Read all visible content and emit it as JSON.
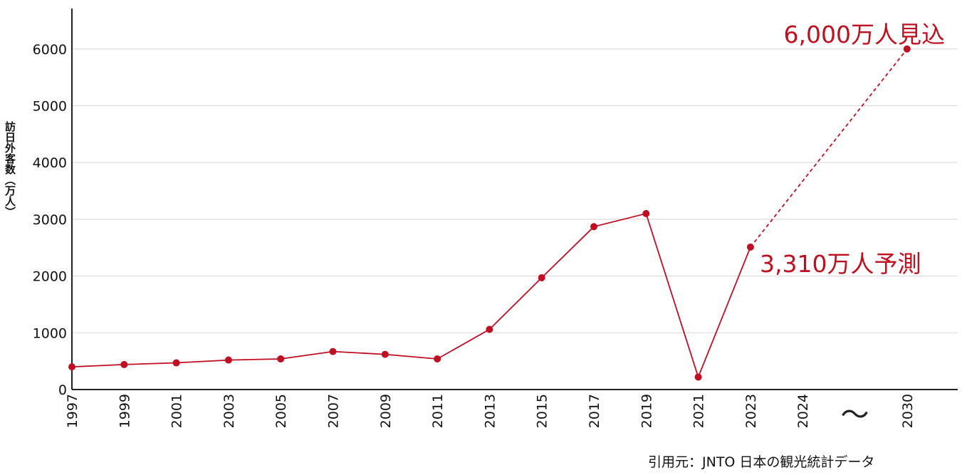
{
  "chart_data": {
    "type": "line",
    "ylabel": "訪日外客数（万人）",
    "ylim": [
      0,
      6500
    ],
    "yticks": [
      0,
      1000,
      2000,
      3000,
      4000,
      5000,
      6000
    ],
    "categories": [
      "1997",
      "1999",
      "2001",
      "2003",
      "2005",
      "2007",
      "2009",
      "2011",
      "2013",
      "2015",
      "2017",
      "2019",
      "2021",
      "2023",
      "2024",
      "〜",
      "2030"
    ],
    "series": [
      {
        "points": [
          {
            "x": "1997",
            "y": 400
          },
          {
            "x": "1999",
            "y": 440
          },
          {
            "x": "2001",
            "y": 470
          },
          {
            "x": "2003",
            "y": 520
          },
          {
            "x": "2005",
            "y": 540
          },
          {
            "x": "2007",
            "y": 670
          },
          {
            "x": "2009",
            "y": 620
          },
          {
            "x": "2011",
            "y": 540
          },
          {
            "x": "2013",
            "y": 1060
          },
          {
            "x": "2015",
            "y": 1970
          },
          {
            "x": "2017",
            "y": 2870
          },
          {
            "x": "2019",
            "y": 3100
          },
          {
            "x": "2021",
            "y": 220
          },
          {
            "x": "2023",
            "y": 2510
          }
        ]
      },
      {
        "style": "dashed",
        "points": [
          {
            "x": "2023",
            "y": 2510
          },
          {
            "x": "2030",
            "y": 6000
          }
        ]
      }
    ],
    "annotations": [
      {
        "text": "6,000万人見込",
        "x": "2030",
        "y": 6000
      },
      {
        "text": "3,310万人予測",
        "x": "2023",
        "y": 2510
      }
    ],
    "grid": "horizontal",
    "colors": {
      "series": "#c00f22",
      "annotation": "#c0101f"
    }
  },
  "source": "引用元：JNTO 日本の観光統計データ"
}
